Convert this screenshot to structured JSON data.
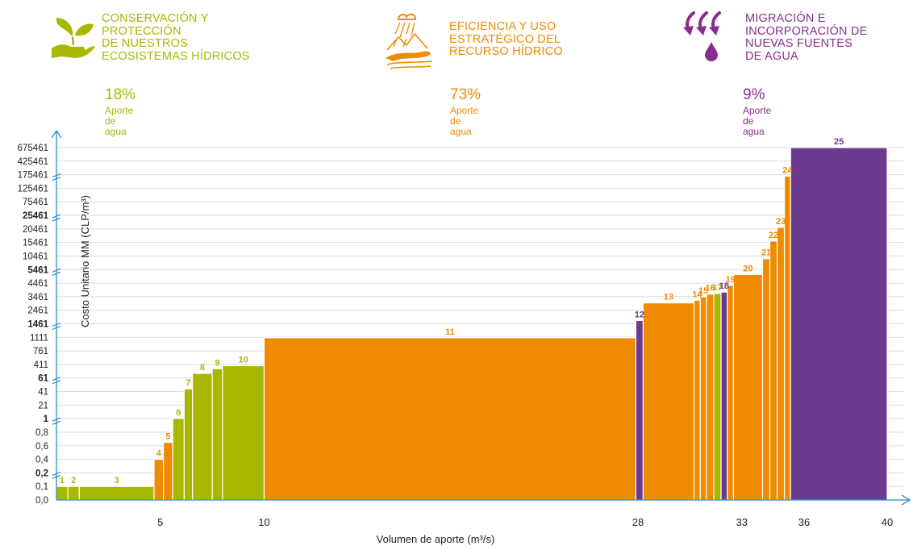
{
  "colors": {
    "green": "#A8B800",
    "orange": "#F08A00",
    "purple": "#6B3A8E",
    "axis": "#2A8ACB",
    "grid": "#D9DCE8"
  },
  "categories": [
    {
      "title": "CONSERVACIÓN Y\nPROTECCIÓN\nDE NUESTROS\nECOSISTEMAS HÍDRICOS",
      "pct": "18%",
      "sub": "Aporte de agua",
      "color": "#A8B800",
      "icon": "hand-plant-icon"
    },
    {
      "title": "EFICIENCIA Y USO\nESTRATÉGICO DEL\nRECURSO HÍDRICO",
      "pct": "73%",
      "sub": "Aporte de agua",
      "color": "#F08A00",
      "icon": "rain-river-icon"
    },
    {
      "title": "MIGRACIÓN E\nINCORPORACIÓN DE\nNUEVAS FUENTES\nDE AGUA",
      "pct": "9%",
      "sub": "Aporte de agua",
      "color": "#8A2E8E",
      "icon": "arrows-drop-icon"
    }
  ],
  "chart_data": {
    "type": "bar",
    "subtype": "variable-width cost curve",
    "xlabel": "Volumen de aporte (m³/s)",
    "ylabel": "Costo Unitario MM (CLP/m³)",
    "x_ticks": [
      "5",
      "10",
      "28",
      "33",
      "36",
      "40"
    ],
    "y_ticks": [
      {
        "label": "0,0",
        "bold": false
      },
      {
        "label": "0,1",
        "bold": false
      },
      {
        "label": "0,2",
        "bold": true,
        "break": true
      },
      {
        "label": "0,4",
        "bold": false
      },
      {
        "label": "0,6",
        "bold": false
      },
      {
        "label": "0,8",
        "bold": false
      },
      {
        "label": "1",
        "bold": true,
        "break": true
      },
      {
        "label": "21",
        "bold": false
      },
      {
        "label": "41",
        "bold": false
      },
      {
        "label": "61",
        "bold": true,
        "break": true
      },
      {
        "label": "411",
        "bold": false
      },
      {
        "label": "761",
        "bold": false
      },
      {
        "label": "1111",
        "bold": false
      },
      {
        "label": "1461",
        "bold": true,
        "break": true
      },
      {
        "label": "2461",
        "bold": false
      },
      {
        "label": "3461",
        "bold": false
      },
      {
        "label": "4461",
        "bold": false
      },
      {
        "label": "5461",
        "bold": true,
        "break": true
      },
      {
        "label": "10461",
        "bold": false
      },
      {
        "label": "15461",
        "bold": false
      },
      {
        "label": "20461",
        "bold": false
      },
      {
        "label": "25461",
        "bold": true,
        "break": true
      },
      {
        "label": "75461",
        "bold": false
      },
      {
        "label": "125461",
        "bold": false
      },
      {
        "label": "175461",
        "bold": false,
        "break": true
      },
      {
        "label": "425461",
        "bold": false
      },
      {
        "label": "675461",
        "bold": false
      }
    ],
    "bars": [
      {
        "id": "1",
        "x0": 0.0,
        "x1": 0.55,
        "y": 0.1,
        "group": "green"
      },
      {
        "id": "2",
        "x0": 0.55,
        "x1": 1.1,
        "y": 0.1,
        "group": "green"
      },
      {
        "id": "3",
        "x0": 1.1,
        "x1": 4.7,
        "y": 0.1,
        "group": "green"
      },
      {
        "id": "4",
        "x0": 4.7,
        "x1": 5.15,
        "y": 0.4,
        "group": "orange"
      },
      {
        "id": "5",
        "x0": 5.15,
        "x1": 5.6,
        "y": 0.65,
        "group": "orange"
      },
      {
        "id": "6",
        "x0": 5.6,
        "x1": 6.15,
        "y": 1.3,
        "group": "green"
      },
      {
        "id": "7",
        "x0": 6.15,
        "x1": 6.55,
        "y": 45,
        "group": "green"
      },
      {
        "id": "8",
        "x0": 6.55,
        "x1": 7.5,
        "y": 180,
        "group": "green"
      },
      {
        "id": "9",
        "x0": 7.5,
        "x1": 8.0,
        "y": 300,
        "group": "green"
      },
      {
        "id": "10",
        "x0": 8.0,
        "x1": 10.0,
        "y": 380,
        "group": "green"
      },
      {
        "id": "11",
        "x0": 10.0,
        "x1": 27.9,
        "y": 1100,
        "group": "orange"
      },
      {
        "id": "12",
        "x0": 27.9,
        "x1": 28.25,
        "y": 1700,
        "group": "purple"
      },
      {
        "id": "13",
        "x0": 28.25,
        "x1": 30.7,
        "y": 3000,
        "group": "orange"
      },
      {
        "id": "14",
        "x0": 30.7,
        "x1": 31.0,
        "y": 3200,
        "group": "orange"
      },
      {
        "id": "15",
        "x0": 31.0,
        "x1": 31.3,
        "y": 3450,
        "group": "orange"
      },
      {
        "id": "16",
        "x0": 31.3,
        "x1": 31.65,
        "y": 3650,
        "group": "orange"
      },
      {
        "id": "17",
        "x0": 31.65,
        "x1": 32.0,
        "y": 3700,
        "group": "green"
      },
      {
        "id": "18",
        "x0": 32.0,
        "x1": 32.3,
        "y": 3800,
        "group": "purple"
      },
      {
        "id": "19",
        "x0": 32.3,
        "x1": 32.6,
        "y": 4300,
        "group": "orange"
      },
      {
        "id": "20",
        "x0": 32.6,
        "x1": 34.0,
        "y": 5100,
        "group": "orange"
      },
      {
        "id": "21",
        "x0": 34.0,
        "x1": 34.35,
        "y": 9500,
        "group": "orange"
      },
      {
        "id": "22",
        "x0": 34.35,
        "x1": 34.7,
        "y": 16000,
        "group": "orange"
      },
      {
        "id": "23",
        "x0": 34.7,
        "x1": 35.05,
        "y": 21000,
        "group": "orange"
      },
      {
        "id": "24",
        "x0": 35.05,
        "x1": 35.35,
        "y": 170000,
        "group": "orange"
      },
      {
        "id": "25",
        "x0": 35.35,
        "x1": 40.0,
        "y": 675461,
        "group": "purple"
      }
    ]
  }
}
